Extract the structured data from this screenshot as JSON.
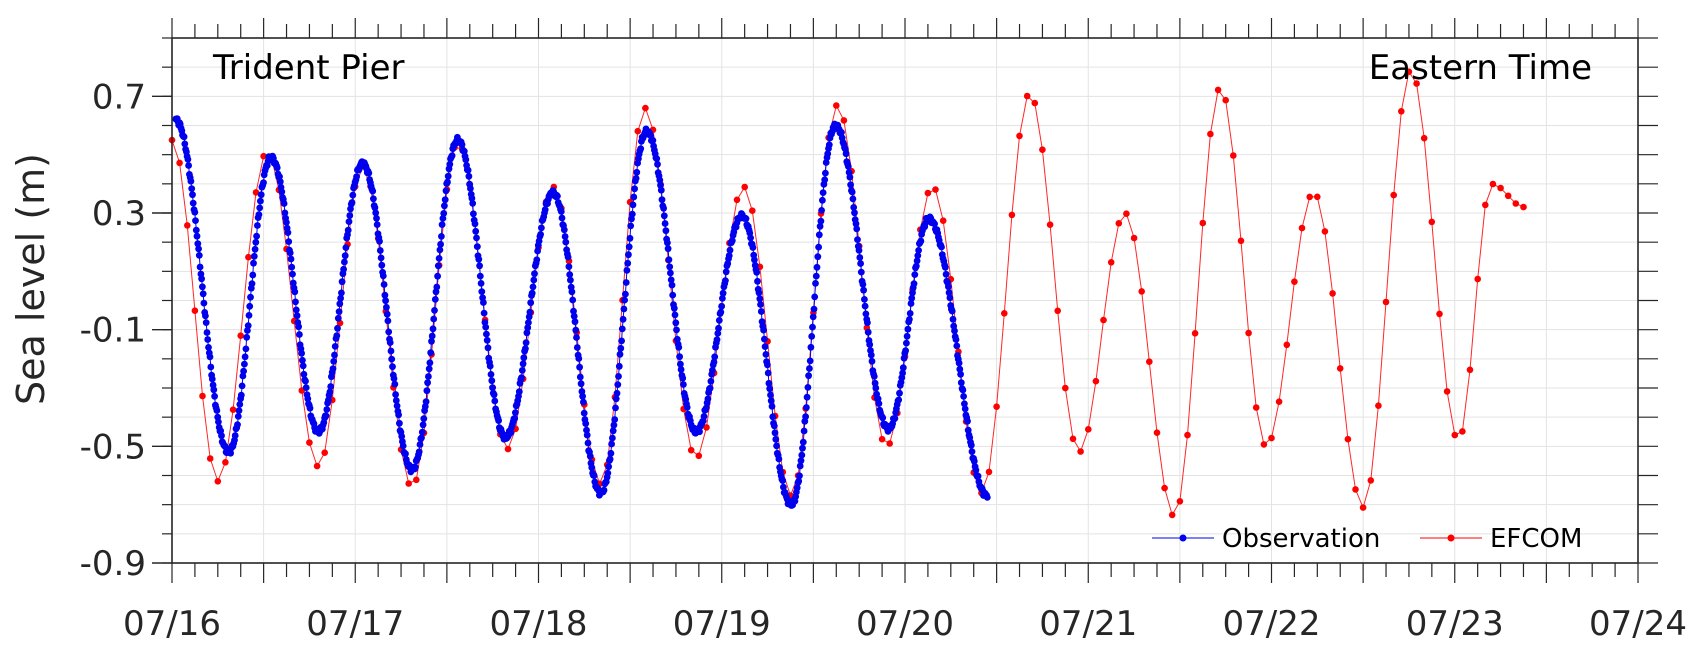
{
  "chart_data": {
    "type": "line",
    "title": "",
    "xlabel": "",
    "ylabel": "Sea level (m)",
    "annotations": {
      "left": "Trident Pier",
      "right": "Eastern Time"
    },
    "x_range": [
      "07/16",
      "07/24"
    ],
    "x_tick_labels": [
      "07/16",
      "07/17",
      "07/18",
      "07/19",
      "07/20",
      "07/21",
      "07/22",
      "07/23",
      "07/24"
    ],
    "ylim": [
      -0.9,
      0.9
    ],
    "y_tick_values": [
      -0.9,
      -0.5,
      -0.1,
      0.3,
      0.7
    ],
    "y_tick_labels": [
      "-0.9",
      "-0.5",
      "-0.1",
      "0.3",
      "0.7"
    ],
    "grid": true,
    "legend_position": "bottom-right",
    "series": [
      {
        "name": "Observation",
        "color": "#0000ee",
        "marker": "dot",
        "x_units": "days since 07/16 00:00",
        "observation_end_day": 4.45,
        "peaks": [
          {
            "t": 0.02,
            "v": 0.62
          },
          {
            "t": 0.31,
            "v": -0.52
          },
          {
            "t": 0.54,
            "v": 0.49
          },
          {
            "t": 0.8,
            "v": -0.45
          },
          {
            "t": 1.04,
            "v": 0.47
          },
          {
            "t": 1.31,
            "v": -0.58
          },
          {
            "t": 1.56,
            "v": 0.55
          },
          {
            "t": 1.82,
            "v": -0.47
          },
          {
            "t": 2.08,
            "v": 0.37
          },
          {
            "t": 2.34,
            "v": -0.66
          },
          {
            "t": 2.59,
            "v": 0.58
          },
          {
            "t": 2.86,
            "v": -0.45
          },
          {
            "t": 3.11,
            "v": 0.29
          },
          {
            "t": 3.38,
            "v": -0.7
          },
          {
            "t": 3.62,
            "v": 0.6
          },
          {
            "t": 3.91,
            "v": -0.44
          },
          {
            "t": 4.13,
            "v": 0.28
          },
          {
            "t": 4.45,
            "v": -0.67
          }
        ]
      },
      {
        "name": "EFCOM",
        "color": "#ff0000",
        "marker": "dot",
        "x_units": "days since 07/16 00:00",
        "peaks": [
          {
            "t": 0.0,
            "v": 0.55
          },
          {
            "t": 0.25,
            "v": -0.62
          },
          {
            "t": 0.52,
            "v": 0.51
          },
          {
            "t": 0.8,
            "v": -0.57
          },
          {
            "t": 1.04,
            "v": 0.46
          },
          {
            "t": 1.31,
            "v": -0.64
          },
          {
            "t": 1.56,
            "v": 0.54
          },
          {
            "t": 1.83,
            "v": -0.51
          },
          {
            "t": 2.08,
            "v": 0.39
          },
          {
            "t": 2.34,
            "v": -0.63
          },
          {
            "t": 2.58,
            "v": 0.66
          },
          {
            "t": 2.86,
            "v": -0.54
          },
          {
            "t": 3.12,
            "v": 0.39
          },
          {
            "t": 3.38,
            "v": -0.67
          },
          {
            "t": 3.63,
            "v": 0.67
          },
          {
            "t": 3.9,
            "v": -0.5
          },
          {
            "t": 4.15,
            "v": 0.39
          },
          {
            "t": 4.42,
            "v": -0.66
          },
          {
            "t": 4.68,
            "v": 0.71
          },
          {
            "t": 4.95,
            "v": -0.52
          },
          {
            "t": 5.2,
            "v": 0.3
          },
          {
            "t": 5.47,
            "v": -0.74
          },
          {
            "t": 5.72,
            "v": 0.73
          },
          {
            "t": 5.97,
            "v": -0.5
          },
          {
            "t": 6.23,
            "v": 0.37
          },
          {
            "t": 6.5,
            "v": -0.71
          },
          {
            "t": 6.76,
            "v": 0.79
          },
          {
            "t": 7.02,
            "v": -0.48
          },
          {
            "t": 7.2,
            "v": 0.4
          },
          {
            "t": 7.38,
            "v": 0.32
          }
        ]
      }
    ]
  }
}
